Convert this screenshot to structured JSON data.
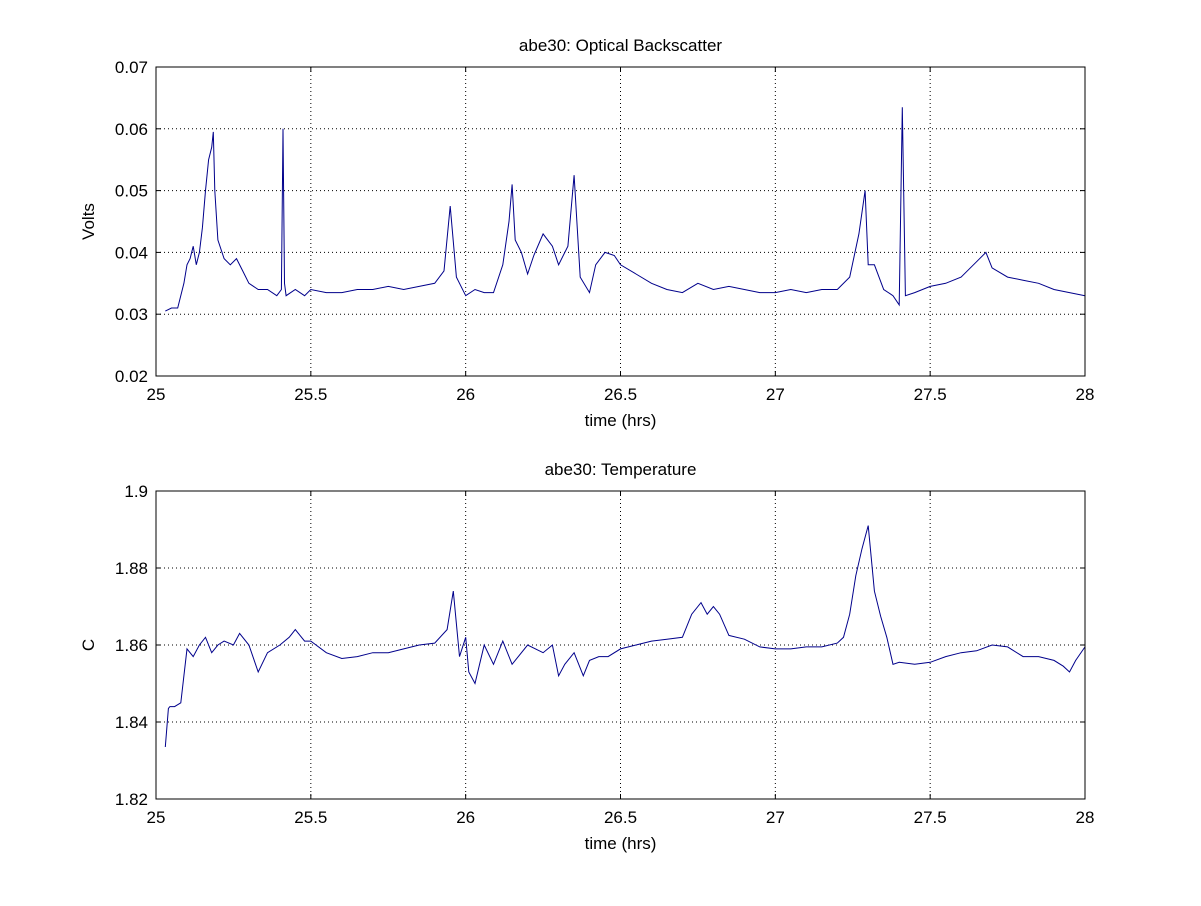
{
  "colors": {
    "line": "#00008b",
    "axes": "#000000",
    "grid": "#000000",
    "background": "#ffffff"
  },
  "chart_data": [
    {
      "type": "line",
      "title": "abe30: Optical Backscatter",
      "xlabel": "time (hrs)",
      "ylabel": "Volts",
      "xlim": [
        25,
        28
      ],
      "ylim": [
        0.02,
        0.07
      ],
      "xticks": [
        25,
        25.5,
        26,
        26.5,
        27,
        27.5,
        28
      ],
      "xtick_labels": [
        "25",
        "25.5",
        "26",
        "26.5",
        "27",
        "27.5",
        "28"
      ],
      "yticks": [
        0.02,
        0.03,
        0.04,
        0.05,
        0.06,
        0.07
      ],
      "ytick_labels": [
        "0.02",
        "0.03",
        "0.04",
        "0.05",
        "0.06",
        "0.07"
      ],
      "grid": true,
      "series": [
        {
          "x": [
            25.03,
            25.05,
            25.07,
            25.09,
            25.1,
            25.11,
            25.12,
            25.13,
            25.14,
            25.15,
            25.16,
            25.17,
            25.18,
            25.185,
            25.19,
            25.2,
            25.22,
            25.24,
            25.26,
            25.28,
            25.3,
            25.33,
            25.36,
            25.39,
            25.405,
            25.41,
            25.415,
            25.42,
            25.45,
            25.48,
            25.5,
            25.55,
            25.6,
            25.65,
            25.7,
            25.75,
            25.8,
            25.85,
            25.9,
            25.93,
            25.95,
            25.97,
            26.0,
            26.03,
            26.06,
            26.09,
            26.12,
            26.14,
            26.15,
            26.16,
            26.18,
            26.2,
            26.22,
            26.25,
            26.28,
            26.3,
            26.33,
            26.35,
            26.37,
            26.4,
            26.42,
            26.45,
            26.48,
            26.5,
            26.55,
            26.6,
            26.65,
            26.7,
            26.75,
            26.8,
            26.85,
            26.9,
            26.95,
            27.0,
            27.05,
            27.1,
            27.15,
            27.2,
            27.24,
            27.27,
            27.29,
            27.3,
            27.32,
            27.35,
            27.38,
            27.4,
            27.41,
            27.42,
            27.45,
            27.5,
            27.55,
            27.6,
            27.65,
            27.68,
            27.7,
            27.75,
            27.8,
            27.85,
            27.9,
            27.95,
            28.0
          ],
          "y": [
            0.0305,
            0.031,
            0.031,
            0.035,
            0.038,
            0.039,
            0.041,
            0.038,
            0.04,
            0.044,
            0.05,
            0.055,
            0.057,
            0.0595,
            0.05,
            0.042,
            0.039,
            0.038,
            0.039,
            0.037,
            0.035,
            0.034,
            0.034,
            0.033,
            0.034,
            0.06,
            0.035,
            0.033,
            0.034,
            0.033,
            0.034,
            0.0335,
            0.0335,
            0.034,
            0.034,
            0.0345,
            0.034,
            0.0345,
            0.035,
            0.037,
            0.0475,
            0.036,
            0.033,
            0.034,
            0.0335,
            0.0335,
            0.038,
            0.045,
            0.051,
            0.042,
            0.04,
            0.0365,
            0.0395,
            0.043,
            0.041,
            0.038,
            0.041,
            0.0525,
            0.036,
            0.0335,
            0.038,
            0.04,
            0.0395,
            0.038,
            0.0365,
            0.035,
            0.034,
            0.0335,
            0.035,
            0.034,
            0.0345,
            0.034,
            0.0335,
            0.0335,
            0.034,
            0.0335,
            0.034,
            0.034,
            0.036,
            0.043,
            0.05,
            0.038,
            0.038,
            0.034,
            0.033,
            0.0315,
            0.0635,
            0.033,
            0.0335,
            0.0345,
            0.035,
            0.036,
            0.0385,
            0.04,
            0.0375,
            0.036,
            0.0355,
            0.035,
            0.034,
            0.0335,
            0.033
          ]
        }
      ]
    },
    {
      "type": "line",
      "title": "abe30: Temperature",
      "xlabel": "time (hrs)",
      "ylabel": "C",
      "xlim": [
        25,
        28
      ],
      "ylim": [
        1.82,
        1.9
      ],
      "xticks": [
        25,
        25.5,
        26,
        26.5,
        27,
        27.5,
        28
      ],
      "xtick_labels": [
        "25",
        "25.5",
        "26",
        "26.5",
        "27",
        "27.5",
        "28"
      ],
      "yticks": [
        1.82,
        1.84,
        1.86,
        1.88,
        1.9
      ],
      "ytick_labels": [
        "1.82",
        "1.84",
        "1.86",
        "1.88",
        "1.9"
      ],
      "grid": true,
      "series": [
        {
          "x": [
            25.03,
            25.04,
            25.045,
            25.06,
            25.08,
            25.09,
            25.1,
            25.12,
            25.14,
            25.16,
            25.18,
            25.2,
            25.22,
            25.25,
            25.27,
            25.3,
            25.33,
            25.36,
            25.4,
            25.43,
            25.45,
            25.48,
            25.5,
            25.55,
            25.6,
            25.65,
            25.7,
            25.75,
            25.8,
            25.85,
            25.9,
            25.94,
            25.96,
            25.98,
            26.0,
            26.01,
            26.03,
            26.06,
            26.09,
            26.12,
            26.15,
            26.2,
            26.25,
            26.28,
            26.3,
            26.32,
            26.35,
            26.38,
            26.4,
            26.43,
            26.46,
            26.5,
            26.55,
            26.6,
            26.65,
            26.7,
            26.73,
            26.76,
            26.78,
            26.8,
            26.82,
            26.85,
            26.9,
            26.95,
            27.0,
            27.05,
            27.1,
            27.15,
            27.2,
            27.22,
            27.24,
            27.26,
            27.28,
            27.3,
            27.32,
            27.34,
            27.36,
            27.38,
            27.4,
            27.45,
            27.5,
            27.55,
            27.6,
            27.65,
            27.7,
            27.75,
            27.8,
            27.85,
            27.9,
            27.93,
            27.95,
            27.97,
            28.0
          ],
          "y": [
            1.8335,
            1.8435,
            1.844,
            1.844,
            1.845,
            1.852,
            1.859,
            1.857,
            1.86,
            1.862,
            1.858,
            1.86,
            1.861,
            1.86,
            1.863,
            1.86,
            1.853,
            1.858,
            1.86,
            1.862,
            1.864,
            1.861,
            1.861,
            1.858,
            1.8565,
            1.857,
            1.858,
            1.858,
            1.859,
            1.86,
            1.8605,
            1.864,
            1.874,
            1.857,
            1.862,
            1.853,
            1.85,
            1.86,
            1.855,
            1.861,
            1.855,
            1.86,
            1.858,
            1.86,
            1.852,
            1.855,
            1.858,
            1.852,
            1.856,
            1.857,
            1.857,
            1.859,
            1.86,
            1.861,
            1.8615,
            1.862,
            1.868,
            1.871,
            1.868,
            1.87,
            1.868,
            1.8625,
            1.8615,
            1.8595,
            1.859,
            1.859,
            1.8595,
            1.8595,
            1.8605,
            1.862,
            1.868,
            1.878,
            1.885,
            1.891,
            1.874,
            1.8675,
            1.862,
            1.855,
            1.8555,
            1.855,
            1.8555,
            1.857,
            1.858,
            1.8585,
            1.86,
            1.8595,
            1.857,
            1.857,
            1.856,
            1.8545,
            1.853,
            1.856,
            1.8595
          ]
        }
      ]
    }
  ]
}
